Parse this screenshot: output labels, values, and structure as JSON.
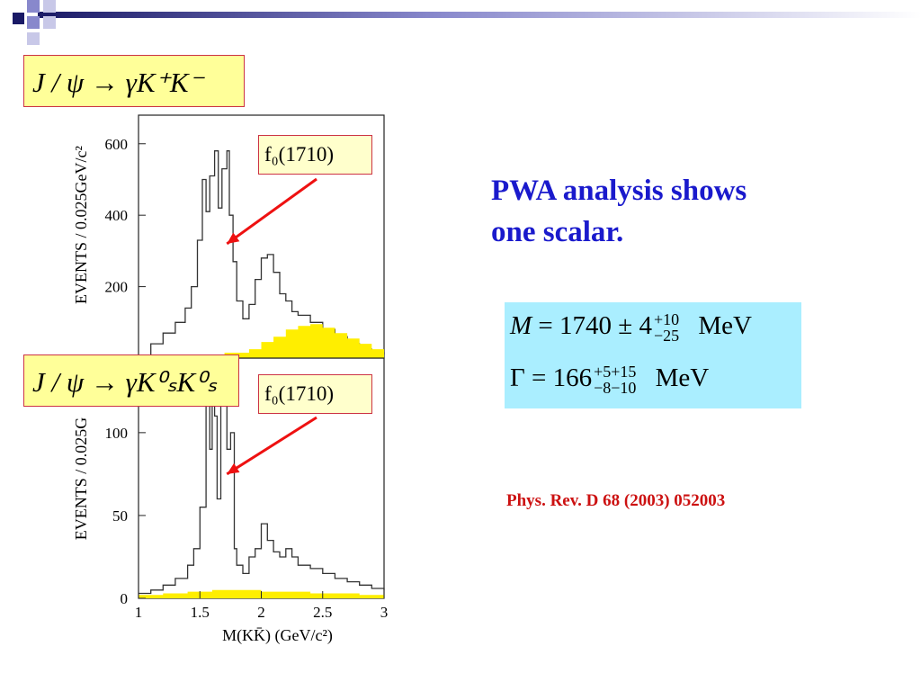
{
  "decor": {
    "colors": [
      "#1a1a66",
      "#8888cc",
      "#c8c8e8"
    ]
  },
  "labels": {
    "eq1": "J / ψ → γK⁺K⁻",
    "eq2": "J / ψ → γK⁰ₛK⁰ₛ",
    "resonance_top": "f₀(1710)",
    "resonance_bottom": "f₀(1710)"
  },
  "text": {
    "pwa_line1": "PWA analysis shows",
    "pwa_line2": "one scalar.",
    "mass_sym": "M",
    "mass_eq": "= 1740 ± 4",
    "mass_up": "+10",
    "mass_dn": "−25",
    "mass_unit": "MeV",
    "width_sym": "Γ",
    "width_eq": "= 166",
    "width_up": "+5+15",
    "width_dn": "−8−10",
    "width_unit": "MeV",
    "reference": "Phys. Rev. D 68 (2003) 052003"
  },
  "chart_data": [
    {
      "type": "line",
      "ylabel": "EVENTS / 0.025GeV/c²",
      "xlim": [
        1,
        3
      ],
      "ylim": [
        0,
        680
      ],
      "yticks": [
        200,
        400,
        600
      ],
      "ytick_labels": [
        "200",
        "400",
        "600"
      ],
      "annotation": "f0(1710)",
      "annotation_x": 1.72,
      "annotation_y": 320,
      "series": [
        {
          "role": "data",
          "x": [
            1.0,
            1.1,
            1.2,
            1.3,
            1.38,
            1.43,
            1.48,
            1.52,
            1.55,
            1.58,
            1.62,
            1.65,
            1.68,
            1.72,
            1.74,
            1.77,
            1.8,
            1.85,
            1.9,
            1.95,
            2.0,
            2.05,
            2.1,
            2.15,
            2.2,
            2.25,
            2.3,
            2.4,
            2.5,
            2.6,
            2.7,
            2.8,
            2.9,
            3.0
          ],
          "y": [
            0,
            40,
            70,
            100,
            140,
            200,
            330,
            500,
            410,
            510,
            580,
            420,
            530,
            580,
            400,
            270,
            160,
            110,
            150,
            220,
            280,
            290,
            240,
            180,
            160,
            130,
            120,
            100,
            80,
            60,
            40,
            25,
            15,
            10
          ]
        },
        {
          "role": "background",
          "x": [
            1.0,
            1.3,
            1.5,
            1.7,
            1.9,
            2.0,
            2.1,
            2.2,
            2.3,
            2.4,
            2.5,
            2.6,
            2.7,
            2.8,
            2.9,
            3.0
          ],
          "y": [
            0,
            5,
            10,
            15,
            25,
            45,
            60,
            80,
            90,
            95,
            85,
            70,
            55,
            40,
            25,
            15
          ]
        }
      ]
    },
    {
      "type": "line",
      "ylabel": "EVENTS / 0.025G",
      "xlabel": "M(KK̄)  (GeV/c²)",
      "xlim": [
        1,
        3
      ],
      "ylim": [
        0,
        145
      ],
      "xticks": [
        1,
        1.5,
        2,
        2.5,
        3
      ],
      "xtick_labels": [
        "1",
        "1.5",
        "2",
        "2.5",
        "3"
      ],
      "yticks": [
        0,
        50,
        100
      ],
      "ytick_labels": [
        "0",
        "50",
        "100"
      ],
      "annotation": "f0(1710)",
      "annotation_x": 1.72,
      "annotation_y": 75,
      "series": [
        {
          "role": "data",
          "x": [
            1.0,
            1.1,
            1.2,
            1.3,
            1.4,
            1.45,
            1.5,
            1.55,
            1.58,
            1.6,
            1.62,
            1.64,
            1.67,
            1.7,
            1.72,
            1.75,
            1.78,
            1.8,
            1.85,
            1.9,
            1.95,
            2.0,
            2.05,
            2.1,
            2.15,
            2.2,
            2.25,
            2.3,
            2.4,
            2.5,
            2.6,
            2.7,
            2.8,
            2.9,
            3.0
          ],
          "y": [
            3,
            5,
            8,
            12,
            20,
            30,
            55,
            130,
            90,
            130,
            110,
            60,
            140,
            120,
            90,
            100,
            30,
            20,
            15,
            25,
            30,
            45,
            35,
            28,
            25,
            30,
            25,
            20,
            18,
            15,
            12,
            10,
            8,
            6,
            5
          ]
        },
        {
          "role": "background",
          "x": [
            1.0,
            1.2,
            1.4,
            1.6,
            1.8,
            2.0,
            2.2,
            2.4,
            2.6,
            2.8,
            3.0
          ],
          "y": [
            2,
            3,
            4,
            5,
            5,
            4,
            4,
            3,
            3,
            2,
            2
          ]
        }
      ]
    }
  ]
}
